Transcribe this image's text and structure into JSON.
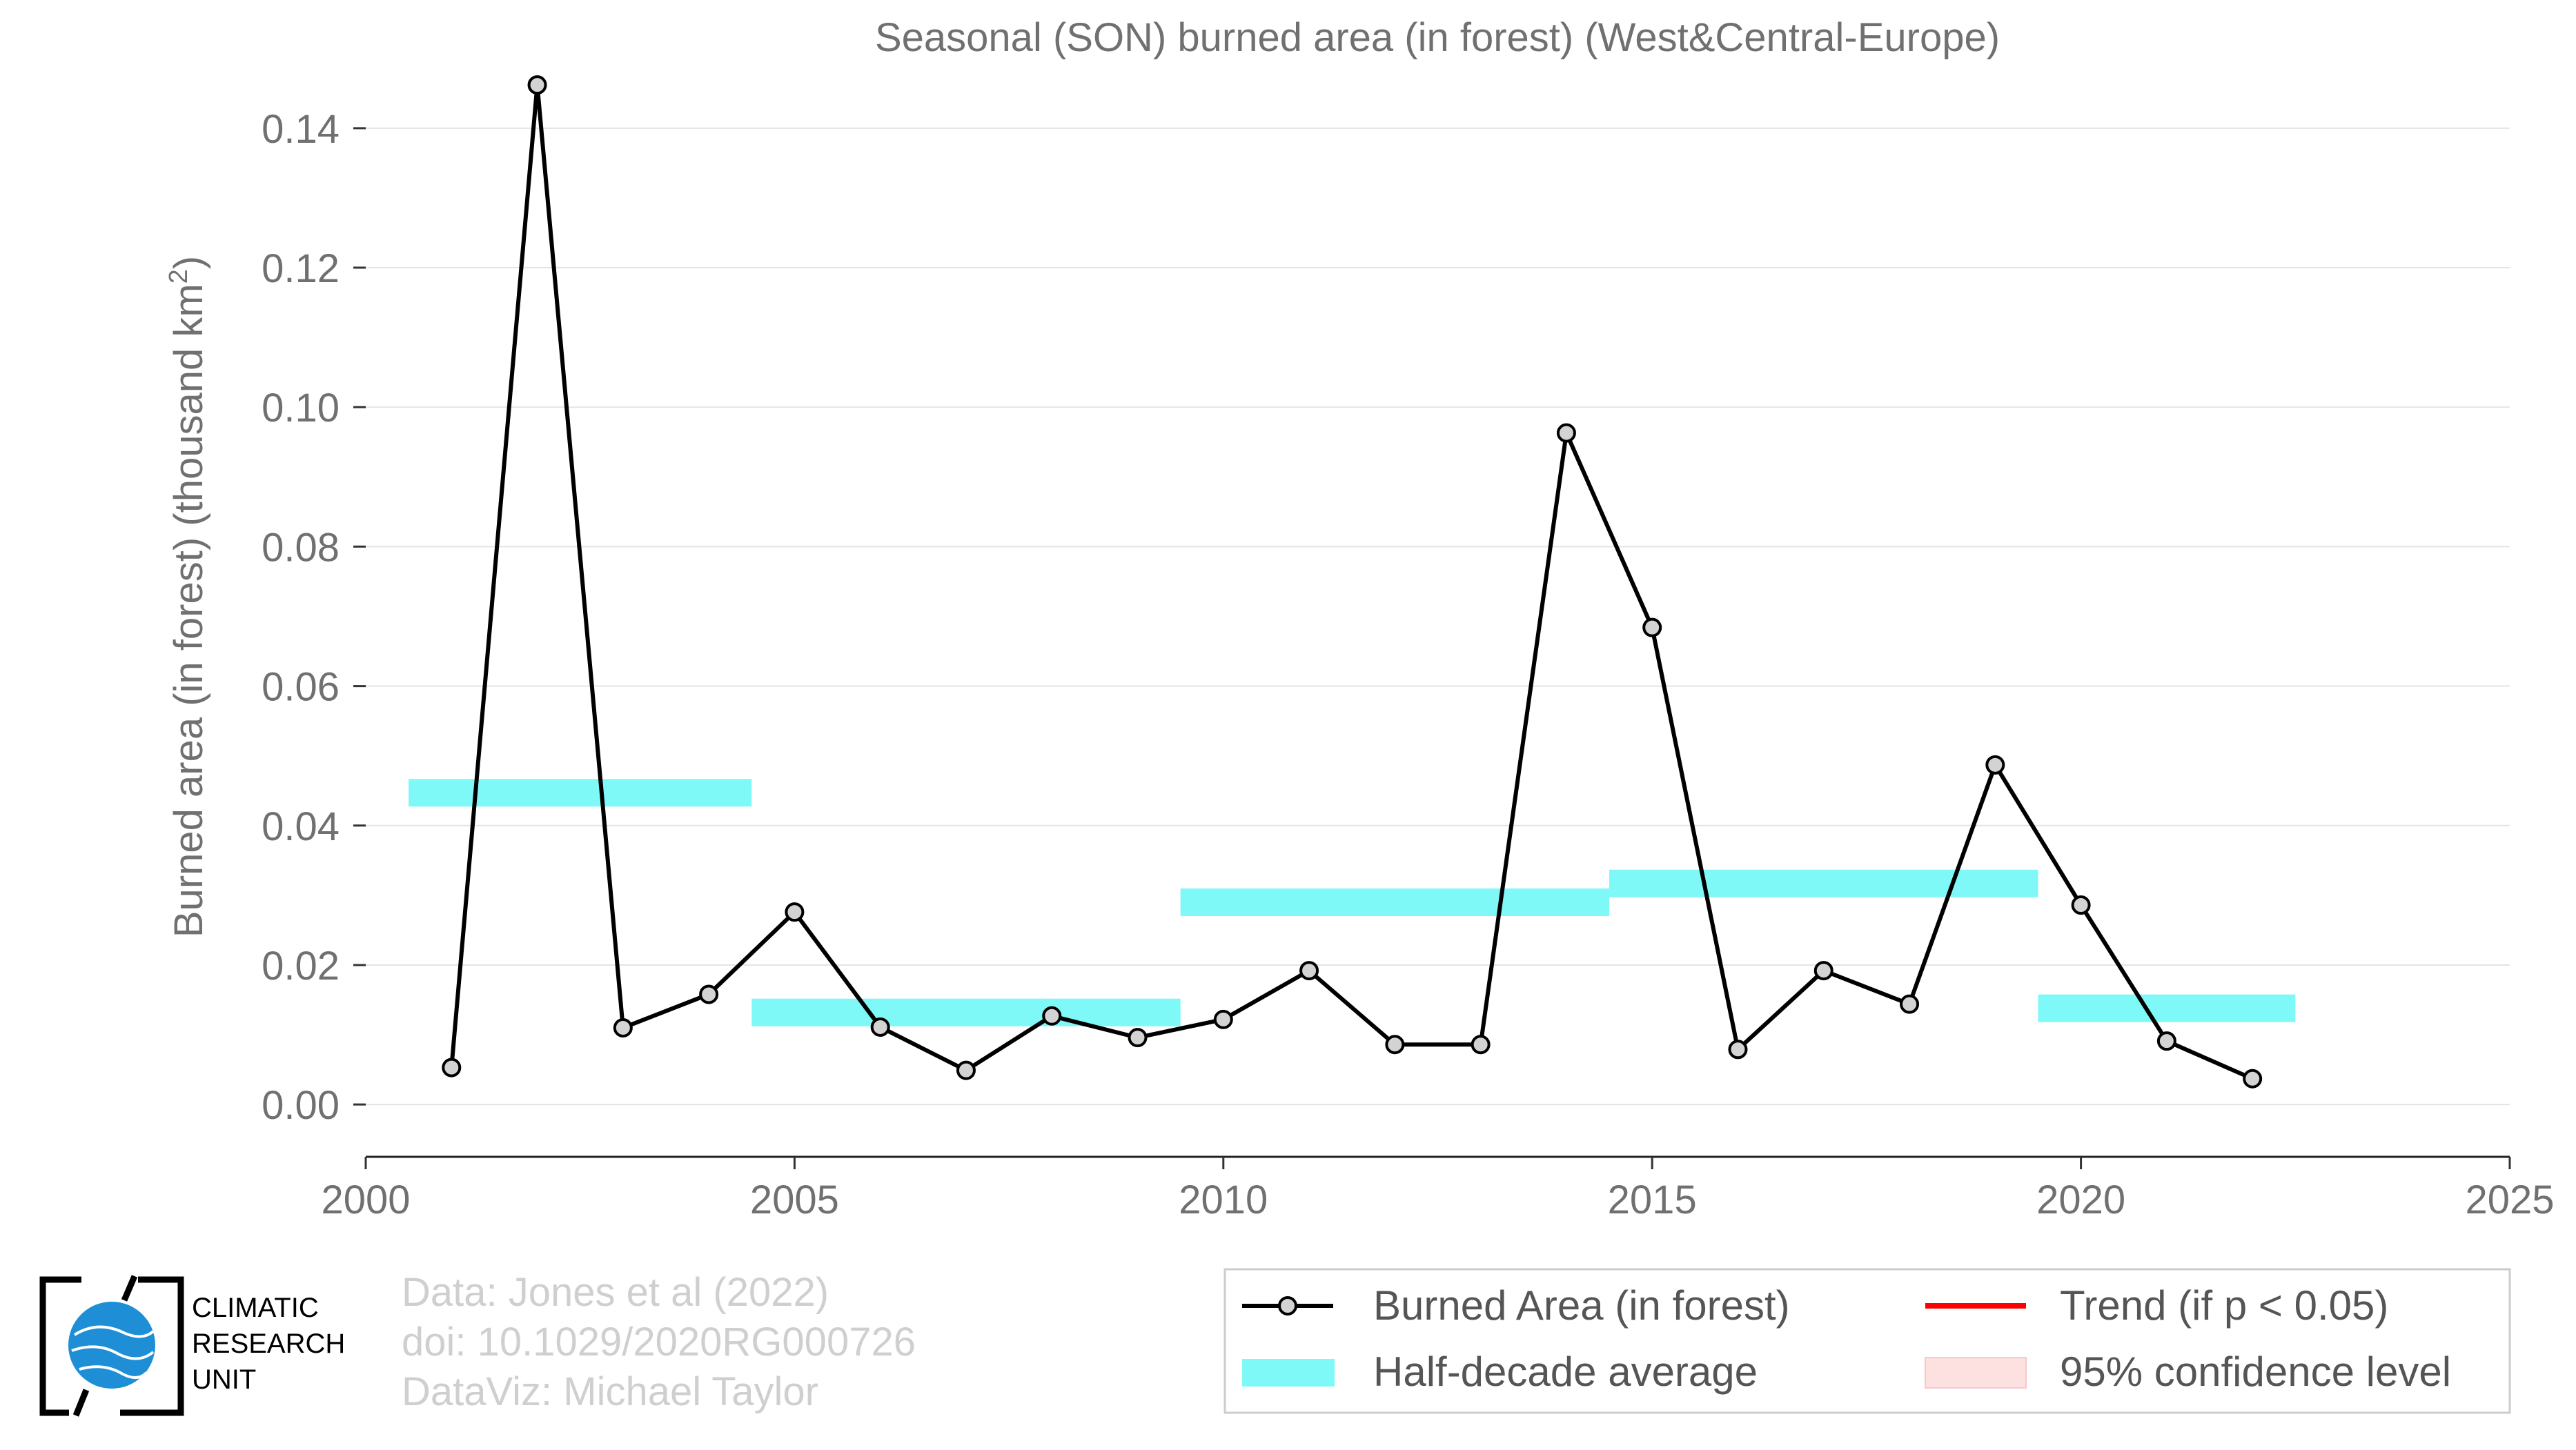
{
  "chart_data": {
    "type": "line",
    "title": "Seasonal (SON) burned area (in forest) (West&Central-Europe)",
    "xlabel": "",
    "ylabel_main": "Burned area (in forest) (thousand km",
    "ylabel_sup": "2",
    "ylabel_close": ")",
    "xlim": [
      2000,
      2025
    ],
    "ylim": [
      -0.0075,
      0.1475
    ],
    "xticks": [
      2000,
      2005,
      2010,
      2015,
      2020,
      2025
    ],
    "yticks": [
      0.0,
      0.02,
      0.04,
      0.06,
      0.08,
      0.1,
      0.12,
      0.14
    ],
    "ytick_labels": [
      "0.00",
      "0.02",
      "0.04",
      "0.06",
      "0.08",
      "0.10",
      "0.12",
      "0.14"
    ],
    "grid": "horizontal",
    "legend_position": "bottom-right",
    "series": [
      {
        "name": "Burned Area (in forest)",
        "color": "#000000",
        "marker_fill": "#d3d3d3",
        "x": [
          2001,
          2002,
          2003,
          2004,
          2005,
          2006,
          2007,
          2008,
          2009,
          2010,
          2011,
          2012,
          2013,
          2014,
          2015,
          2016,
          2017,
          2018,
          2019,
          2020,
          2021,
          2022
        ],
        "y": [
          0.0053,
          0.1462,
          0.011,
          0.0158,
          0.0276,
          0.0111,
          0.0049,
          0.0127,
          0.0096,
          0.0122,
          0.0192,
          0.0086,
          0.0086,
          0.0963,
          0.0684,
          0.0079,
          0.0192,
          0.0144,
          0.0487,
          0.0286,
          0.0091,
          0.0037
        ]
      },
      {
        "name": "Half-decade average",
        "color": "#7ff8f8",
        "segments": [
          {
            "x_start": 2000.5,
            "x_end": 2004.5,
            "value": 0.0447
          },
          {
            "x_start": 2004.5,
            "x_end": 2009.5,
            "value": 0.0132
          },
          {
            "x_start": 2009.5,
            "x_end": 2014.5,
            "value": 0.029
          },
          {
            "x_start": 2014.5,
            "x_end": 2019.5,
            "value": 0.0317
          },
          {
            "x_start": 2019.5,
            "x_end": 2022.5,
            "value": 0.0138
          }
        ]
      }
    ],
    "legend": [
      {
        "label": "Burned Area (in forest)",
        "kind": "line-marker",
        "color": "#000000"
      },
      {
        "label": "Trend (if p < 0.05)",
        "kind": "line",
        "color": "#ff0000"
      },
      {
        "label": "Half-decade average",
        "kind": "band",
        "color": "#7ff8f8"
      },
      {
        "label": "95% confidence level",
        "kind": "band",
        "color": "#fde0e0"
      }
    ]
  },
  "logo": {
    "line1": "CLIMATIC",
    "line2": "RESEARCH",
    "line3": "UNIT",
    "globe_color": "#1e8fd6"
  },
  "credits": {
    "line1": "Data: Jones et al (2022)",
    "line2": "doi: 10.1029/2020RG000726",
    "line3": "DataViz: Michael Taylor"
  }
}
